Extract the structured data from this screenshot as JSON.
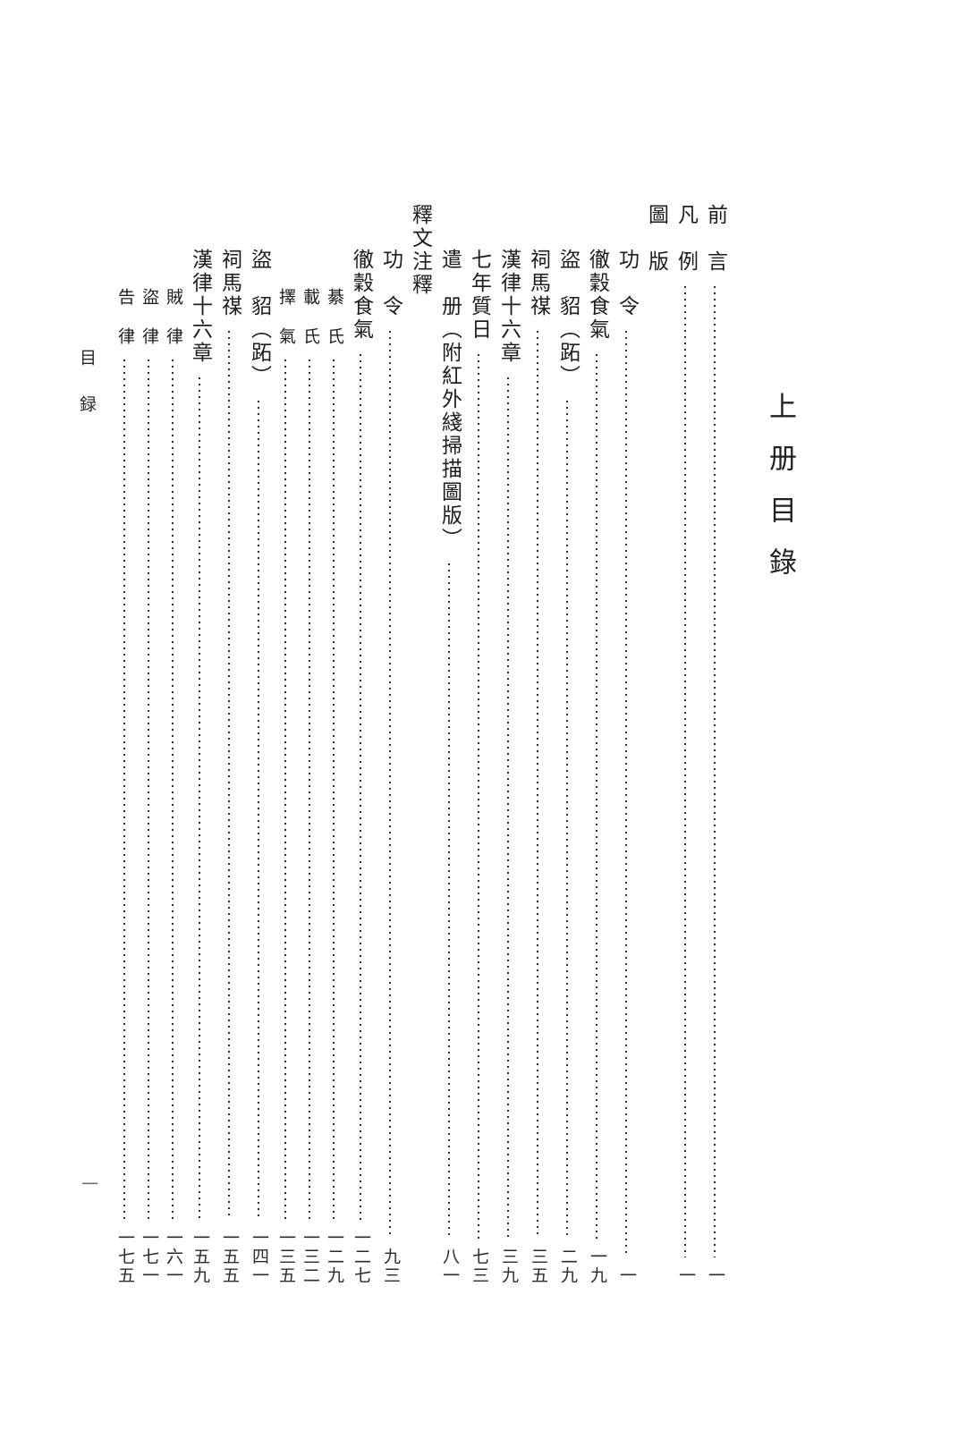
{
  "page": {
    "volume_title": "上册目錄",
    "margin_label": "目録",
    "folio_number": "一",
    "ink_color": "#1d1d1d",
    "leader_dot_color": "#2e2e2e",
    "background_color": "#ffffff"
  },
  "toc": {
    "entries": [
      {
        "label": "前　言",
        "page": "一",
        "level": 0,
        "small": false,
        "header": false
      },
      {
        "label": "凡　例",
        "page": "一",
        "level": 0,
        "small": false,
        "header": false
      },
      {
        "label": "圖　版",
        "page": null,
        "level": 0,
        "small": false,
        "header": true
      },
      {
        "label": "功　令",
        "page": "一",
        "level": 1,
        "small": false,
        "header": false
      },
      {
        "label": "徹穀食氣",
        "page": "一九",
        "level": 1,
        "small": false,
        "header": false
      },
      {
        "label": "盜　貂（跖）",
        "page": "二九",
        "level": 1,
        "small": false,
        "header": false
      },
      {
        "label": "祠馬禖",
        "page": "三五",
        "level": 1,
        "small": false,
        "header": false
      },
      {
        "label": "漢律十六章",
        "page": "三九",
        "level": 1,
        "small": false,
        "header": false
      },
      {
        "label": "七年質日",
        "page": "七三",
        "level": 1,
        "small": false,
        "header": false
      },
      {
        "label": "遣　册（附紅外綫掃描圖版）",
        "page": "八一",
        "level": 1,
        "small": false,
        "header": false
      },
      {
        "label": "釋文注釋",
        "page": null,
        "level": 0,
        "small": false,
        "header": true
      },
      {
        "label": "功　令",
        "page": "九三",
        "level": 1,
        "small": false,
        "header": false
      },
      {
        "label": "徹穀食氣",
        "page": "一二七",
        "level": 1,
        "small": false,
        "header": false
      },
      {
        "label": "綦　氏",
        "page": "一二九",
        "level": 2,
        "small": true,
        "header": false
      },
      {
        "label": "載　氏",
        "page": "一三二",
        "level": 2,
        "small": true,
        "header": false
      },
      {
        "label": "擇　氣",
        "page": "一三五",
        "level": 2,
        "small": true,
        "header": false
      },
      {
        "label": "盜　貂（跖）",
        "page": "一四一",
        "level": 1,
        "small": false,
        "header": false
      },
      {
        "label": "祠馬禖",
        "page": "一五五",
        "level": 1,
        "small": false,
        "header": false
      },
      {
        "label": "漢律十六章",
        "page": "一五九",
        "level": 1,
        "small": false,
        "header": false
      },
      {
        "label": "賊　律",
        "page": "一六一",
        "level": 2,
        "small": true,
        "header": false
      },
      {
        "label": "盜　律",
        "page": "一七一",
        "level": 2,
        "small": true,
        "header": false
      },
      {
        "label": "告　律",
        "page": "一七五",
        "level": 2,
        "small": true,
        "header": false
      }
    ]
  }
}
